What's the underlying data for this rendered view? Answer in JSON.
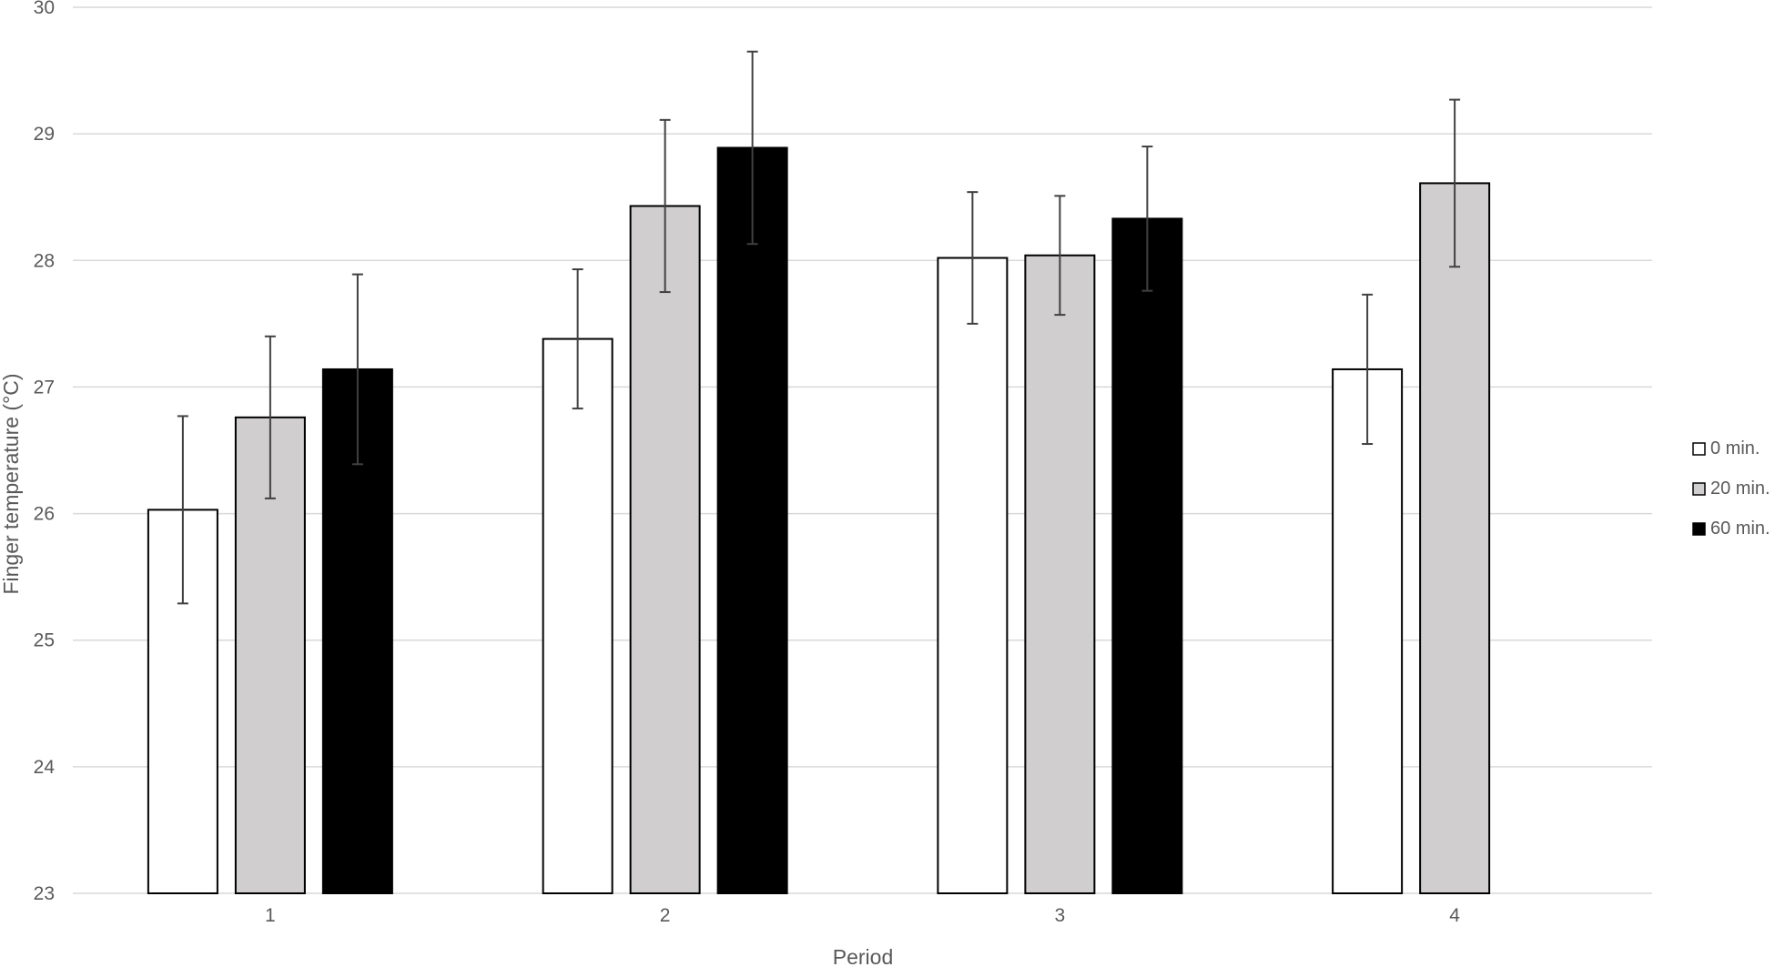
{
  "chart_data": {
    "type": "bar",
    "title": "",
    "xlabel": "Period",
    "ylabel": "Finger temperature (°C)",
    "ylim": [
      23,
      30
    ],
    "yticks": [
      23,
      24,
      25,
      26,
      27,
      28,
      29,
      30
    ],
    "grid": true,
    "legend_position": "right",
    "categories": [
      "1",
      "2",
      "3",
      "4"
    ],
    "series": [
      {
        "name": "0 min.",
        "color": "#ffffff",
        "values": [
          26.03,
          27.38,
          28.02,
          27.14
        ],
        "errors": [
          0.74,
          0.55,
          0.52,
          0.59
        ]
      },
      {
        "name": "20 min.",
        "color": "#d0cece",
        "values": [
          26.76,
          28.43,
          28.04,
          28.61
        ],
        "errors": [
          0.64,
          0.68,
          0.47,
          0.66
        ]
      },
      {
        "name": "60 min.",
        "color": "#000000",
        "values": [
          27.14,
          28.89,
          28.33,
          null
        ],
        "errors": [
          0.75,
          0.76,
          0.57,
          null
        ]
      }
    ]
  }
}
